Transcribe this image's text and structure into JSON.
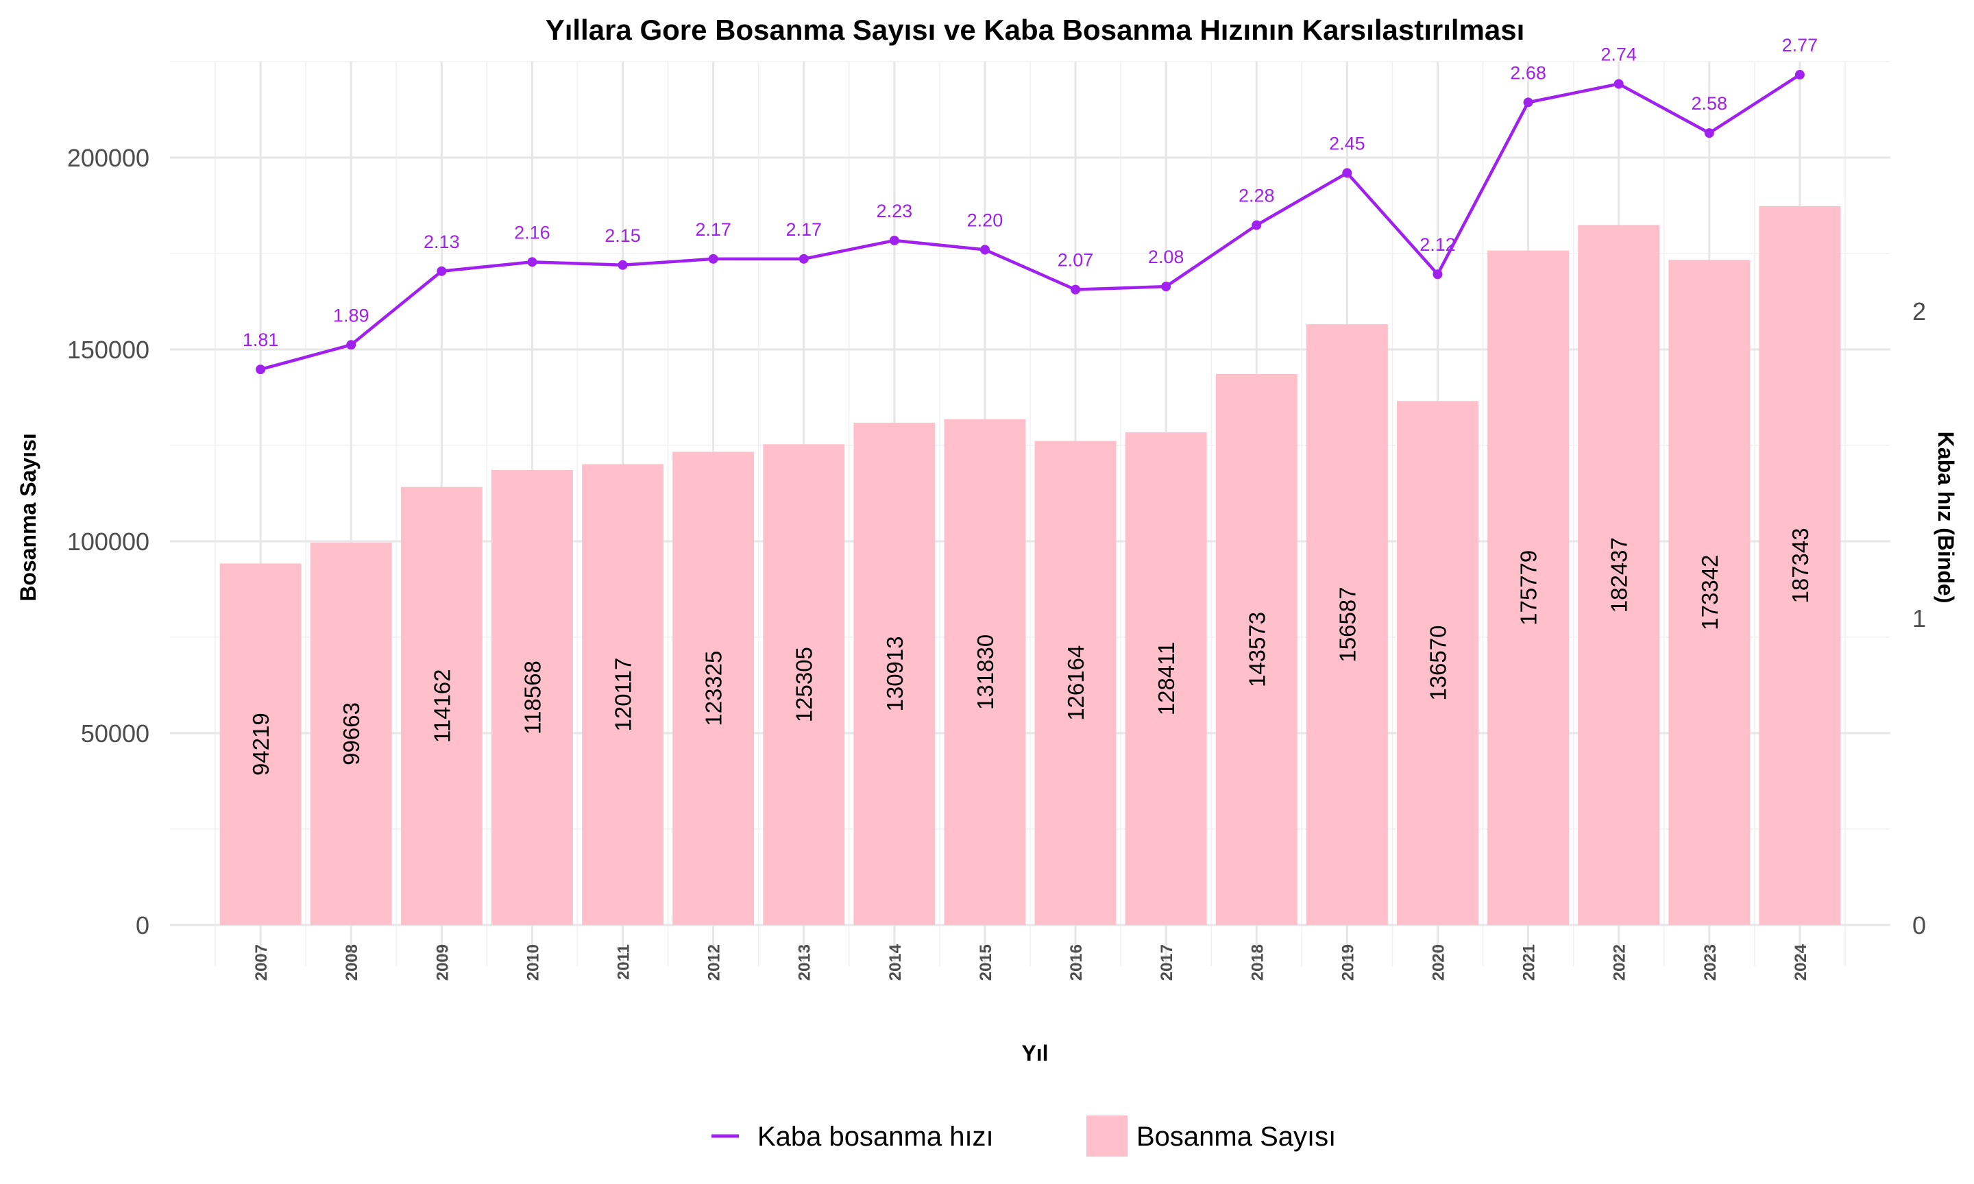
{
  "chart_data": {
    "type": "bar",
    "title": "Yıllara Gore Bosanma Sayısı ve Kaba Bosanma Hızının Karsılastırılması",
    "xlabel": "Yıl",
    "ylabel": "Bosanma Sayısı",
    "ylabel_right": "Kaba hız (Binde)",
    "categories": [
      "2007",
      "2008",
      "2009",
      "2010",
      "2011",
      "2012",
      "2013",
      "2014",
      "2015",
      "2016",
      "2017",
      "2018",
      "2019",
      "2020",
      "2021",
      "2022",
      "2023",
      "2024"
    ],
    "series": [
      {
        "name": "Bosanma Sayısı",
        "type": "bar",
        "axis": "left",
        "color": "#ffc0cb",
        "values": [
          94219,
          99663,
          114162,
          118568,
          120117,
          123325,
          125305,
          130913,
          131830,
          126164,
          128411,
          143573,
          156587,
          136570,
          175779,
          182437,
          173342,
          187343
        ]
      },
      {
        "name": "Kaba bosanma hızı",
        "type": "line",
        "axis": "right",
        "color": "#a020f0",
        "values": [
          1.81,
          1.89,
          2.13,
          2.16,
          2.15,
          2.17,
          2.17,
          2.23,
          2.2,
          2.07,
          2.08,
          2.28,
          2.45,
          2.12,
          2.68,
          2.74,
          2.58,
          2.77
        ],
        "value_labels": [
          "1.81",
          "1.89",
          "2.13",
          "2.16",
          "2.15",
          "2.17",
          "2.17",
          "2.23",
          "2.20",
          "2.07",
          "2.08",
          "2.28",
          "2.45",
          "2.12",
          "2.68",
          "2.74",
          "2.58",
          "2.77"
        ]
      }
    ],
    "ylim": [
      0,
      225000
    ],
    "yticks": [
      0,
      50000,
      100000,
      150000,
      200000
    ],
    "ytick_labels": [
      "0",
      "50000",
      "100000",
      "150000",
      "200000"
    ],
    "ylim_right": [
      0,
      2.8125
    ],
    "yticks_right": [
      0,
      1,
      2
    ],
    "ytick_labels_right": [
      "0",
      "1",
      "2"
    ],
    "grid": true,
    "legend": {
      "position": "bottom",
      "entries": [
        "Kaba bosanma hızı",
        "Bosanma Sayısı"
      ]
    }
  }
}
